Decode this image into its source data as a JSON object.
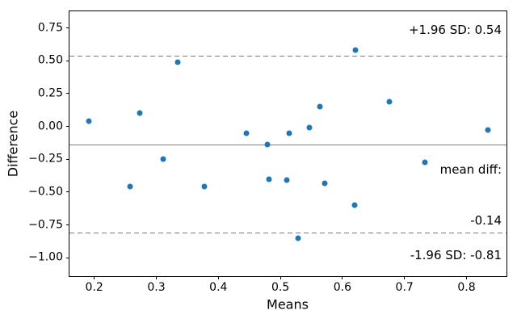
{
  "chart_data": {
    "type": "scatter",
    "title": "",
    "xlabel": "Means",
    "ylabel": "Difference",
    "xlim": [
      0.16,
      0.867
    ],
    "ylim": [
      -1.152,
      0.876
    ],
    "grid": false,
    "marker_color": "#1f77b4",
    "ref_line_color": "#808080",
    "x_ticks": [
      0.2,
      0.3,
      0.4,
      0.5,
      0.6,
      0.7,
      0.8
    ],
    "x_tick_labels": [
      "0.2",
      "0.3",
      "0.4",
      "0.5",
      "0.6",
      "0.7",
      "0.8"
    ],
    "y_ticks": [
      0.75,
      0.5,
      0.25,
      0.0,
      -0.25,
      -0.5,
      -0.75,
      -1.0
    ],
    "y_tick_labels": [
      "0.75",
      "0.50",
      "0.25",
      "0.00",
      "−0.25",
      "−0.50",
      "−0.75",
      "−1.00"
    ],
    "points": [
      {
        "x": 0.191,
        "y": 0.04
      },
      {
        "x": 0.257,
        "y": -0.46
      },
      {
        "x": 0.273,
        "y": 0.1
      },
      {
        "x": 0.311,
        "y": -0.25
      },
      {
        "x": 0.334,
        "y": 0.49
      },
      {
        "x": 0.377,
        "y": -0.46
      },
      {
        "x": 0.445,
        "y": -0.05
      },
      {
        "x": 0.479,
        "y": -0.14
      },
      {
        "x": 0.481,
        "y": -0.4
      },
      {
        "x": 0.51,
        "y": -0.41
      },
      {
        "x": 0.514,
        "y": -0.05
      },
      {
        "x": 0.529,
        "y": -0.85
      },
      {
        "x": 0.547,
        "y": -0.01
      },
      {
        "x": 0.563,
        "y": 0.15
      },
      {
        "x": 0.571,
        "y": -0.43
      },
      {
        "x": 0.62,
        "y": -0.6
      },
      {
        "x": 0.621,
        "y": 0.58
      },
      {
        "x": 0.675,
        "y": 0.19
      },
      {
        "x": 0.733,
        "y": -0.27
      },
      {
        "x": 0.834,
        "y": -0.03
      }
    ],
    "ref_lines": {
      "mean": {
        "value": -0.14,
        "style": "solid"
      },
      "upper": {
        "value": 0.54,
        "style": "dashed"
      },
      "lower": {
        "value": -0.81,
        "style": "dashed"
      }
    },
    "annotations": {
      "upper": "+1.96 SD: 0.54",
      "mean_line1": "mean diff:",
      "mean_line2": "-0.14",
      "lower": "-1.96 SD: -0.81"
    }
  }
}
